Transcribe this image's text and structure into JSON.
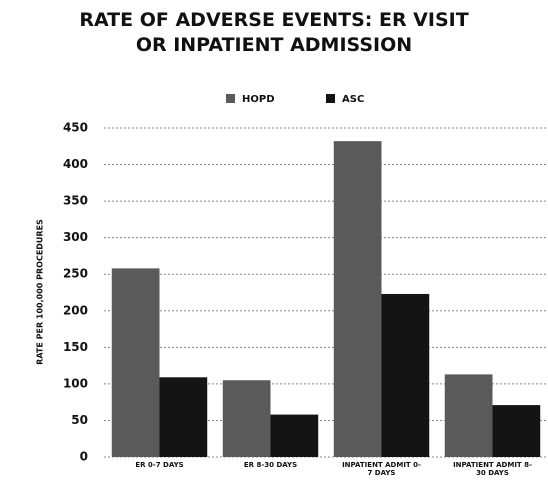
{
  "chart_data": {
    "type": "bar",
    "title": "RATE OF ADVERSE EVENTS: ER VISIT OR INPATIENT ADMISSION",
    "ylabel": "RATE PER 100,000 PROCEDURES",
    "categories": [
      "ER 0-7 DAYS",
      "ER 8-30 DAYS",
      "INPATIENT ADMIT 0-7 DAYS",
      "INPATIENT ADMIT 8-30 DAYS"
    ],
    "series": [
      {
        "name": "HOPD",
        "color": "#5a5a5a",
        "values": [
          258,
          105,
          432,
          113
        ]
      },
      {
        "name": "ASC",
        "color": "#141414",
        "values": [
          109,
          58,
          223,
          71
        ]
      }
    ],
    "ylim": [
      0,
      450
    ],
    "yticks": [
      0,
      50,
      100,
      150,
      200,
      250,
      300,
      350,
      400,
      450
    ],
    "grid": true
  }
}
